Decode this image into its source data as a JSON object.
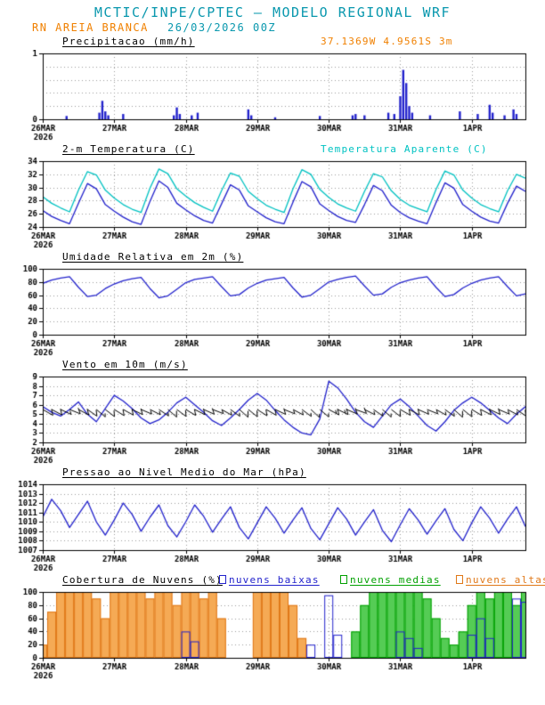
{
  "header": {
    "title": "MCTIC/INPE/CPTEC — MODELO REGIONAL WRF",
    "title_color": "#0a98ae",
    "station": "RN AREIA BRANCA",
    "station_color": "#f08000",
    "run": "26/03/2026 00Z",
    "run_color": "#0a98ae"
  },
  "colors": {
    "blue": "#2222cc",
    "cyan": "#00c2c2",
    "green": "#00a000",
    "orange": "#e07818",
    "grid": "#9a9a9a",
    "axis": "#000000"
  },
  "x_axis": {
    "total_hours": 162,
    "step_hours": 3,
    "ticks": [
      {
        "hour": 0,
        "label": "26MAR",
        "sublabel": "2026"
      },
      {
        "hour": 24,
        "label": "27MAR"
      },
      {
        "hour": 48,
        "label": "28MAR"
      },
      {
        "hour": 72,
        "label": "29MAR"
      },
      {
        "hour": 96,
        "label": "30MAR"
      },
      {
        "hour": 120,
        "label": "31MAR"
      },
      {
        "hour": 144,
        "label": "1APR"
      }
    ]
  },
  "chart_data": [
    {
      "id": "precip",
      "type": "bar",
      "title": "Precipitacao (mm/h)",
      "annotation": "37.1369W 4.9561S 3m",
      "annotation_color": "#f08000",
      "ylim": [
        0,
        1
      ],
      "yticks": [
        0,
        1
      ],
      "grid": [
        0.2,
        0.4,
        0.6,
        0.8
      ],
      "bar_color": "#2222cc",
      "bars_hourly": [
        [
          8,
          0.05
        ],
        [
          19,
          0.1
        ],
        [
          20,
          0.28
        ],
        [
          21,
          0.12
        ],
        [
          22,
          0.06
        ],
        [
          27,
          0.08
        ],
        [
          44,
          0.06
        ],
        [
          45,
          0.18
        ],
        [
          46,
          0.08
        ],
        [
          50,
          0.06
        ],
        [
          52,
          0.1
        ],
        [
          69,
          0.15
        ],
        [
          70,
          0.06
        ],
        [
          78,
          0.03
        ],
        [
          93,
          0.05
        ],
        [
          104,
          0.06
        ],
        [
          105,
          0.08
        ],
        [
          108,
          0.06
        ],
        [
          116,
          0.1
        ],
        [
          118,
          0.08
        ],
        [
          120,
          0.35
        ],
        [
          121,
          0.75
        ],
        [
          122,
          0.55
        ],
        [
          123,
          0.2
        ],
        [
          124,
          0.1
        ],
        [
          130,
          0.06
        ],
        [
          140,
          0.12
        ],
        [
          146,
          0.08
        ],
        [
          150,
          0.22
        ],
        [
          151,
          0.1
        ],
        [
          155,
          0.06
        ],
        [
          158,
          0.15
        ],
        [
          159,
          0.08
        ]
      ]
    },
    {
      "id": "temp",
      "type": "line",
      "title": "2-m Temperatura (C)",
      "annotation": "Temperatura Aparente (C)",
      "annotation_color": "#00c2c2",
      "ylim": [
        24,
        34
      ],
      "yticks": [
        24,
        26,
        28,
        30,
        32,
        34
      ],
      "series": [
        {
          "name": "2-m Temperatura (C)",
          "color": "#2222cc",
          "values": [
            26.5,
            25.6,
            25.0,
            24.5,
            27.6,
            30.6,
            29.8,
            27.4,
            26.4,
            25.5,
            24.8,
            24.4,
            27.9,
            31.0,
            30.0,
            27.6,
            26.6,
            25.7,
            25.0,
            24.6,
            27.5,
            30.4,
            29.6,
            27.2,
            26.3,
            25.4,
            24.8,
            24.5,
            27.8,
            30.9,
            30.1,
            27.5,
            26.5,
            25.6,
            25.0,
            24.7,
            27.4,
            30.3,
            29.5,
            27.3,
            26.2,
            25.4,
            24.9,
            24.5,
            27.7,
            30.7,
            29.9,
            27.4,
            26.4,
            25.5,
            24.9,
            24.6,
            27.6,
            30.2,
            29.4
          ]
        },
        {
          "name": "Temperatura Aparente (C)",
          "color": "#00c2c2",
          "values": [
            28.6,
            27.6,
            26.9,
            26.3,
            29.6,
            32.4,
            31.9,
            29.6,
            28.4,
            27.4,
            26.7,
            26.2,
            29.9,
            32.8,
            32.1,
            29.8,
            28.7,
            27.7,
            27.0,
            26.4,
            29.5,
            32.2,
            31.7,
            29.4,
            28.3,
            27.3,
            26.7,
            26.2,
            29.8,
            32.7,
            32.0,
            29.7,
            28.5,
            27.5,
            26.9,
            26.4,
            29.4,
            32.1,
            31.6,
            29.5,
            28.2,
            27.3,
            26.8,
            26.3,
            29.7,
            32.5,
            31.9,
            29.6,
            28.4,
            27.4,
            26.8,
            26.3,
            29.5,
            32.0,
            31.4
          ]
        }
      ]
    },
    {
      "id": "rh",
      "type": "line",
      "title": "Umidade Relativa em 2m (%)",
      "ylim": [
        0,
        100
      ],
      "yticks": [
        0,
        20,
        40,
        60,
        80,
        100
      ],
      "series": [
        {
          "name": "Umidade Relativa em 2m (%)",
          "color": "#2222cc",
          "values": [
            78,
            83,
            86,
            88,
            72,
            58,
            60,
            70,
            77,
            82,
            85,
            87,
            70,
            56,
            59,
            69,
            79,
            84,
            86,
            88,
            73,
            59,
            61,
            71,
            78,
            83,
            85,
            87,
            71,
            57,
            60,
            70,
            80,
            84,
            87,
            89,
            74,
            60,
            62,
            72,
            79,
            83,
            86,
            88,
            72,
            58,
            61,
            71,
            78,
            83,
            86,
            88,
            73,
            59,
            62
          ]
        }
      ]
    },
    {
      "id": "wind",
      "type": "line+barbs",
      "title": "Vento em 10m (m/s)",
      "ylim": [
        2,
        9
      ],
      "yticks": [
        2,
        3,
        4,
        5,
        6,
        7,
        8,
        9
      ],
      "barb_level": 5.5,
      "barb_dirs_deg": [
        120,
        118,
        115,
        112,
        118,
        125,
        130,
        128,
        122,
        119,
        116,
        113,
        117,
        124,
        131,
        127,
        121,
        117,
        114,
        111,
        119,
        126,
        132,
        129,
        123,
        120,
        115,
        112,
        118,
        127,
        133,
        130,
        118,
        116,
        113,
        110,
        117,
        125,
        131,
        128,
        120,
        118,
        114,
        112,
        119,
        126,
        132,
        129,
        121,
        117,
        115,
        113,
        118,
        125,
        130
      ],
      "series": [
        {
          "name": "Vento em 10m (m/s)",
          "color": "#2222cc",
          "values": [
            5.8,
            5.2,
            4.8,
            5.5,
            6.3,
            5.0,
            4.2,
            5.6,
            7.0,
            6.4,
            5.6,
            4.6,
            4.0,
            4.4,
            5.2,
            6.2,
            6.8,
            6.0,
            5.2,
            4.3,
            3.8,
            4.6,
            5.5,
            6.5,
            7.2,
            6.5,
            5.4,
            4.4,
            3.6,
            3.0,
            2.8,
            4.5,
            8.5,
            7.8,
            6.6,
            5.2,
            4.2,
            3.6,
            4.8,
            6.0,
            6.6,
            5.8,
            4.8,
            3.8,
            3.2,
            4.2,
            5.4,
            6.2,
            6.8,
            6.2,
            5.4,
            4.6,
            4.0,
            5.0,
            5.8
          ]
        }
      ]
    },
    {
      "id": "pres",
      "type": "line",
      "title": "Pressao ao Nivel Medio do Mar (hPa)",
      "ylim": [
        1007,
        1014
      ],
      "yticks": [
        1007,
        1008,
        1009,
        1010,
        1011,
        1012,
        1013,
        1014
      ],
      "series": [
        {
          "name": "Pressao ao Nivel Medio do Mar (hPa)",
          "color": "#2222cc",
          "values": [
            1010.5,
            1012.4,
            1011.2,
            1009.4,
            1010.8,
            1012.2,
            1010.0,
            1008.6,
            1010.2,
            1012.0,
            1010.8,
            1009.0,
            1010.5,
            1011.8,
            1009.6,
            1008.4,
            1010.0,
            1011.8,
            1010.6,
            1008.9,
            1010.3,
            1011.6,
            1009.4,
            1008.2,
            1009.9,
            1011.6,
            1010.4,
            1008.8,
            1010.2,
            1011.5,
            1009.3,
            1008.1,
            1009.8,
            1011.5,
            1010.3,
            1008.6,
            1010.0,
            1011.3,
            1009.1,
            1007.9,
            1009.7,
            1011.4,
            1010.2,
            1008.7,
            1010.1,
            1011.4,
            1009.2,
            1008.0,
            1009.9,
            1011.6,
            1010.4,
            1008.8,
            1010.3,
            1011.6,
            1009.5
          ]
        }
      ]
    },
    {
      "id": "clouds",
      "type": "bar",
      "title": "Cobertura de Nuvens (%)",
      "ylim": [
        0,
        100
      ],
      "yticks": [
        0,
        20,
        40,
        60,
        80,
        100
      ],
      "legend": [
        {
          "label": "nuvens baixas",
          "color": "#2222cc"
        },
        {
          "label": "nuvens medias",
          "color": "#00a000"
        },
        {
          "label": "nuvens altas",
          "color": "#e07818"
        }
      ],
      "series": [
        {
          "name": "nuvens altas",
          "stroke": "#e07818",
          "fill": "#f5aa55",
          "values": [
            20,
            70,
            100,
            100,
            100,
            100,
            90,
            60,
            100,
            100,
            100,
            100,
            90,
            100,
            100,
            80,
            100,
            100,
            90,
            100,
            60,
            0,
            0,
            0,
            100,
            100,
            100,
            100,
            80,
            30,
            0,
            0,
            0,
            0,
            0,
            0,
            0,
            0,
            0,
            0,
            0,
            0,
            0,
            0,
            0,
            0,
            0,
            0,
            0,
            0,
            0,
            20,
            30,
            0,
            0
          ]
        },
        {
          "name": "nuvens medias",
          "stroke": "#00a000",
          "fill": "#55cc55",
          "values": [
            0,
            0,
            0,
            0,
            0,
            0,
            0,
            0,
            0,
            0,
            0,
            0,
            0,
            0,
            0,
            0,
            0,
            0,
            0,
            0,
            0,
            0,
            0,
            0,
            0,
            0,
            0,
            0,
            0,
            0,
            0,
            0,
            0,
            0,
            0,
            40,
            80,
            100,
            100,
            100,
            100,
            100,
            100,
            90,
            60,
            30,
            20,
            40,
            80,
            100,
            90,
            100,
            100,
            80,
            100
          ]
        },
        {
          "name": "nuvens baixas",
          "stroke": "#2222cc",
          "fill": "none",
          "values": [
            0,
            0,
            0,
            0,
            0,
            0,
            0,
            0,
            0,
            0,
            0,
            0,
            0,
            0,
            0,
            0,
            40,
            25,
            0,
            0,
            0,
            0,
            0,
            0,
            0,
            0,
            0,
            0,
            0,
            0,
            20,
            0,
            95,
            35,
            0,
            0,
            0,
            0,
            0,
            0,
            40,
            30,
            15,
            0,
            0,
            0,
            0,
            0,
            35,
            60,
            30,
            0,
            0,
            90,
            85
          ]
        }
      ]
    }
  ]
}
